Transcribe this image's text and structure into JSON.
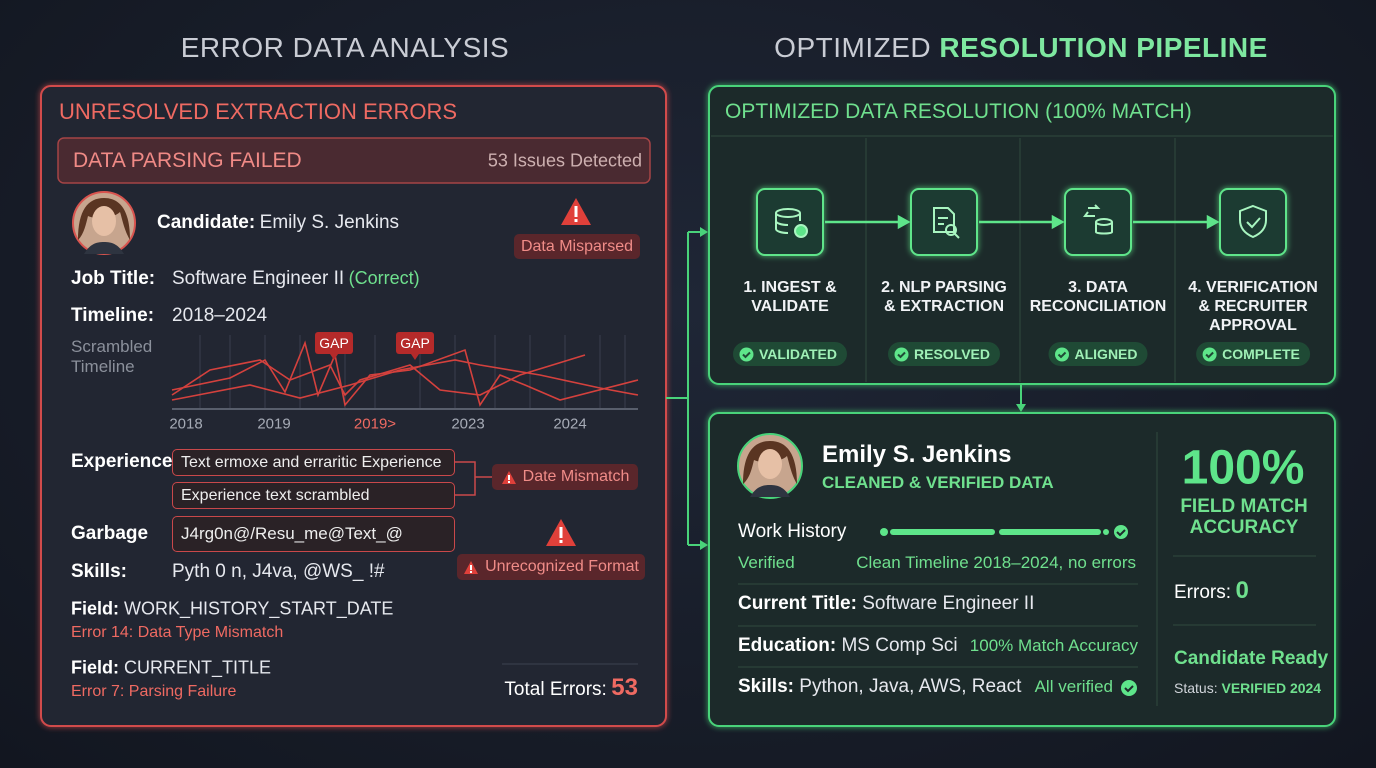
{
  "left": {
    "heading": "ERROR DATA ANALYSIS",
    "panel_title": "UNRESOLVED EXTRACTION ERRORS",
    "banner": {
      "title": "DATA PARSING FAILED",
      "issues": "53 Issues Detected"
    },
    "candidate": {
      "label": "Candidate:",
      "value": "Emily S. Jenkins"
    },
    "flags": [
      "Data Misparsed",
      "Date Mismatch",
      "Unrecognized Format"
    ],
    "job_title": {
      "label": "Job Title:",
      "value": "Software Engineer II",
      "note": "(Correct)"
    },
    "timeline": {
      "label": "Timeline:",
      "value": "2018–2024"
    },
    "scrambled": {
      "label": "Scrambled Timeline",
      "gap_labels": [
        "GAP",
        "GAP"
      ],
      "axis_labels": [
        "2018",
        "2019",
        "2019>",
        "2023",
        "2024"
      ]
    },
    "experience": {
      "label": "Experience",
      "boxes": [
        "Text ermoxe and erraritic Experience",
        "Experience text scrambled"
      ]
    },
    "garbage": {
      "label": "Garbage",
      "value": "J4rg0n@/Resu_me@Text_@"
    },
    "skills": {
      "label": "Skills:",
      "value": "Pyth 0 n, J4va, @WS_ !#"
    },
    "fields": [
      {
        "label": "Field:",
        "name": "WORK_HISTORY_START_DATE",
        "error": "Error 14: Data Type Mismatch"
      },
      {
        "label": "Field:",
        "name": "CURRENT_TITLE",
        "error": "Error 7: Parsing Failure"
      }
    ],
    "total": {
      "label": "Total Errors:",
      "value": 53
    }
  },
  "right": {
    "heading": {
      "plain": "OPTIMIZED",
      "bold": "RESOLUTION PIPELINE"
    },
    "pipeline_title": "OPTIMIZED DATA RESOLUTION (100% MATCH)",
    "steps": [
      {
        "label": "1. INGEST & VALIDATE",
        "status": "VALIDATED"
      },
      {
        "label": "2. NLP PARSING & EXTRACTION",
        "status": "RESOLVED"
      },
      {
        "label": "3. DATA RECONCILIATION",
        "status": "ALIGNED"
      },
      {
        "label": "4. VERIFICATION & RECRUITER APPROVAL",
        "status": "COMPLETE"
      }
    ],
    "profile": {
      "name": "Emily S. Jenkins",
      "subtitle": "CLEANED & VERIFIED DATA",
      "work_history": {
        "label": "Work History",
        "status": "Verified",
        "note": "Clean Timeline 2018–2024, no errors"
      },
      "rows": [
        {
          "label": "Current Title:",
          "value": "Software Engineer II"
        },
        {
          "label": "Education:",
          "value": "MS Comp Sci",
          "note": "100% Match Accuracy"
        },
        {
          "label": "Skills:",
          "value": "Python, Java, AWS, React",
          "note": "All verified"
        }
      ]
    },
    "accuracy": {
      "value": "100%",
      "label": "FIELD MATCH ACCURACY"
    },
    "errors": {
      "label": "Errors:",
      "value": 0
    },
    "ready": {
      "title": "Candidate Ready",
      "status_label": "Status:",
      "status_value": "VERIFIED 2024"
    }
  }
}
